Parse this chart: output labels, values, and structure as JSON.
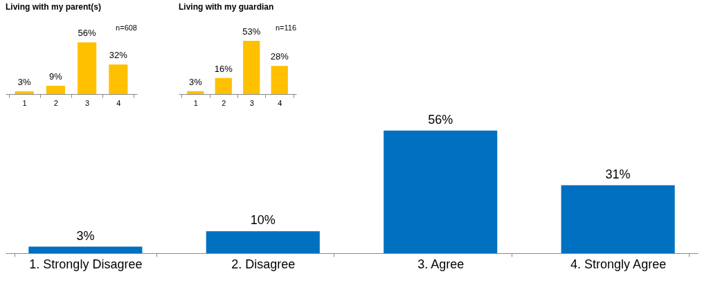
{
  "chart_data": [
    {
      "type": "bar",
      "title": "Living with my parent(s)",
      "annotations": [
        "n=608"
      ],
      "categories": [
        "1",
        "2",
        "3",
        "4"
      ],
      "values": [
        3,
        9,
        56,
        32
      ],
      "value_labels": [
        "3%",
        "9%",
        "56%",
        "32%"
      ],
      "color": "#ffc000",
      "tick_labels": "x"
    },
    {
      "type": "bar",
      "title": "Living with my guardian",
      "annotations": [
        "n=116"
      ],
      "categories": [
        "1",
        "2",
        "3",
        "4"
      ],
      "values": [
        3,
        16,
        53,
        28
      ],
      "value_labels": [
        "3%",
        "16%",
        "53%",
        "28%"
      ],
      "color": "#ffc000",
      "tick_labels": "x"
    },
    {
      "type": "bar",
      "categories": [
        "1. Strongly Disagree",
        "2. Disagree",
        "3. Agree",
        "4. Strongly Agree"
      ],
      "values": [
        3,
        10,
        56,
        31
      ],
      "value_labels": [
        "3%",
        "10%",
        "56%",
        "31%"
      ],
      "color": "#0070c0",
      "tick_labels": "x"
    }
  ]
}
